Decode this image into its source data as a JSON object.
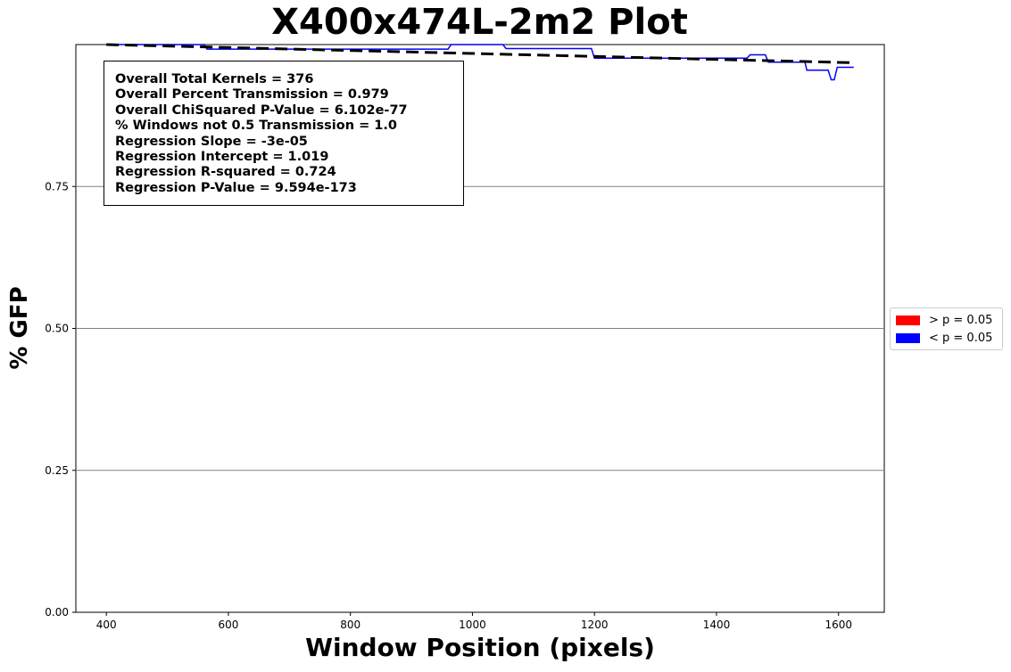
{
  "chart_data": {
    "type": "line",
    "title": "X400x474L-2m2 Plot",
    "xlabel": "Window Position (pixels)",
    "ylabel": "% GFP",
    "xlim": [
      350,
      1675
    ],
    "ylim": [
      0.0,
      1.0
    ],
    "xticks": [
      400,
      600,
      800,
      1000,
      1200,
      1400,
      1600
    ],
    "xtick_labels": [
      "400",
      "600",
      "800",
      "1000",
      "1200",
      "1400",
      "1600"
    ],
    "yticks": [
      0.0,
      0.25,
      0.5,
      0.75
    ],
    "ytick_labels": [
      "0.00",
      "0.25",
      "0.50",
      "0.75"
    ],
    "grid": "horizontal",
    "legend_position": "outside-right",
    "legend": [
      {
        "label": "> p = 0.05",
        "color": "#ff0000"
      },
      {
        "label": "< p = 0.05",
        "color": "#0000ff"
      }
    ],
    "stats": [
      "Overall Total Kernels = 376",
      "Overall Percent Transmission = 0.979",
      "Overall ChiSquared P-Value = 6.102e-77",
      "% Windows not 0.5 Transmission = 1.0",
      "Regression Slope = -3e-05",
      "Regression Intercept = 1.019",
      "Regression R-squared = 0.724",
      "Regression P-Value = 9.594e-173"
    ],
    "series": [
      {
        "name": "< p = 0.05",
        "color": "#0000ff",
        "points": [
          [
            400,
            1.0
          ],
          [
            560,
            1.0
          ],
          [
            565,
            0.992
          ],
          [
            960,
            0.992
          ],
          [
            965,
            1.0
          ],
          [
            1050,
            1.0
          ],
          [
            1055,
            0.993
          ],
          [
            1195,
            0.993
          ],
          [
            1200,
            0.976
          ],
          [
            1450,
            0.976
          ],
          [
            1455,
            0.982
          ],
          [
            1480,
            0.982
          ],
          [
            1485,
            0.969
          ],
          [
            1545,
            0.969
          ],
          [
            1548,
            0.955
          ],
          [
            1583,
            0.955
          ],
          [
            1588,
            0.938
          ],
          [
            1593,
            0.938
          ],
          [
            1598,
            0.96
          ],
          [
            1625,
            0.96
          ]
        ]
      },
      {
        "name": "Regression",
        "color": "#000000",
        "dashed": true,
        "points": [
          [
            400,
            1.0
          ],
          [
            1625,
            0.968
          ]
        ]
      }
    ]
  }
}
